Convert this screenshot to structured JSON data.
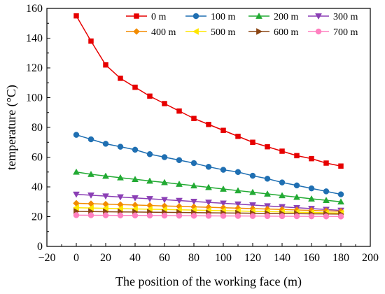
{
  "chart_data": {
    "type": "line",
    "xlabel": "The position of the working face (m)",
    "ylabel": "temperature (°C)",
    "xlim": [
      -20,
      200
    ],
    "ylim": [
      0,
      160
    ],
    "xticks": [
      -20,
      0,
      20,
      40,
      60,
      80,
      100,
      120,
      140,
      160,
      180,
      200
    ],
    "yticks": [
      0,
      20,
      40,
      60,
      80,
      100,
      120,
      140,
      160
    ],
    "grid": false,
    "legend_position": "top-right",
    "x": [
      0,
      10,
      20,
      30,
      40,
      50,
      60,
      70,
      80,
      90,
      100,
      110,
      120,
      130,
      140,
      150,
      160,
      170,
      180
    ],
    "series": [
      {
        "name": "0 m",
        "color": "#e60000",
        "marker": "square",
        "values": [
          155,
          138,
          122,
          113,
          107,
          101,
          96,
          91,
          86,
          82,
          78,
          74,
          70,
          67,
          64,
          61,
          59,
          56,
          54
        ]
      },
      {
        "name": "100 m",
        "color": "#1f6fb2",
        "marker": "circle",
        "values": [
          75,
          72,
          69,
          67,
          65,
          62,
          60,
          58,
          56,
          53.5,
          51.5,
          50,
          47.5,
          45.5,
          43,
          41,
          39,
          37,
          35
        ]
      },
      {
        "name": "200 m",
        "color": "#22aa33",
        "marker": "triangle-up",
        "values": [
          50,
          48.5,
          47.3,
          46.2,
          45.1,
          44,
          43,
          41.9,
          40.8,
          39.7,
          38.6,
          37.5,
          36.4,
          35.3,
          34.2,
          33.1,
          32,
          31,
          30
        ]
      },
      {
        "name": "300 m",
        "color": "#8b3fb5",
        "marker": "triangle-down",
        "values": [
          35,
          34.4,
          33.8,
          33.2,
          32.6,
          32,
          31.4,
          30.8,
          30.2,
          29.6,
          29,
          28.4,
          27.8,
          27.2,
          26.6,
          26,
          25.4,
          24.8,
          24.2
        ]
      },
      {
        "name": "400 m",
        "color": "#f28c00",
        "marker": "diamond",
        "values": [
          29,
          28.7,
          28.4,
          28.1,
          27.8,
          27.5,
          27.2,
          26.9,
          26.6,
          26.3,
          26,
          25.7,
          25.4,
          25.1,
          24.8,
          24.5,
          24.2,
          23.9,
          23.6
        ]
      },
      {
        "name": "500 m",
        "color": "#ffe600",
        "marker": "triangle-left",
        "values": [
          26,
          25.8,
          25.6,
          25.4,
          25.2,
          25,
          24.8,
          24.6,
          24.4,
          24.2,
          24,
          23.8,
          23.6,
          23.4,
          23.2,
          23,
          22.8,
          22.6,
          22.4
        ]
      },
      {
        "name": "600 m",
        "color": "#8b4513",
        "marker": "triangle-right",
        "values": [
          23.5,
          23.4,
          23.3,
          23.2,
          23.1,
          23,
          22.9,
          22.8,
          22.7,
          22.6,
          22.5,
          22.4,
          22.3,
          22.2,
          22.1,
          22,
          21.9,
          21.8,
          21.7
        ]
      },
      {
        "name": "700 m",
        "color": "#ff80c0",
        "marker": "circle",
        "values": [
          21,
          20.95,
          20.9,
          20.85,
          20.8,
          20.75,
          20.7,
          20.65,
          20.6,
          20.55,
          20.5,
          20.45,
          20.4,
          20.35,
          20.3,
          20.25,
          20.2,
          20.15,
          20.1
        ]
      }
    ]
  }
}
